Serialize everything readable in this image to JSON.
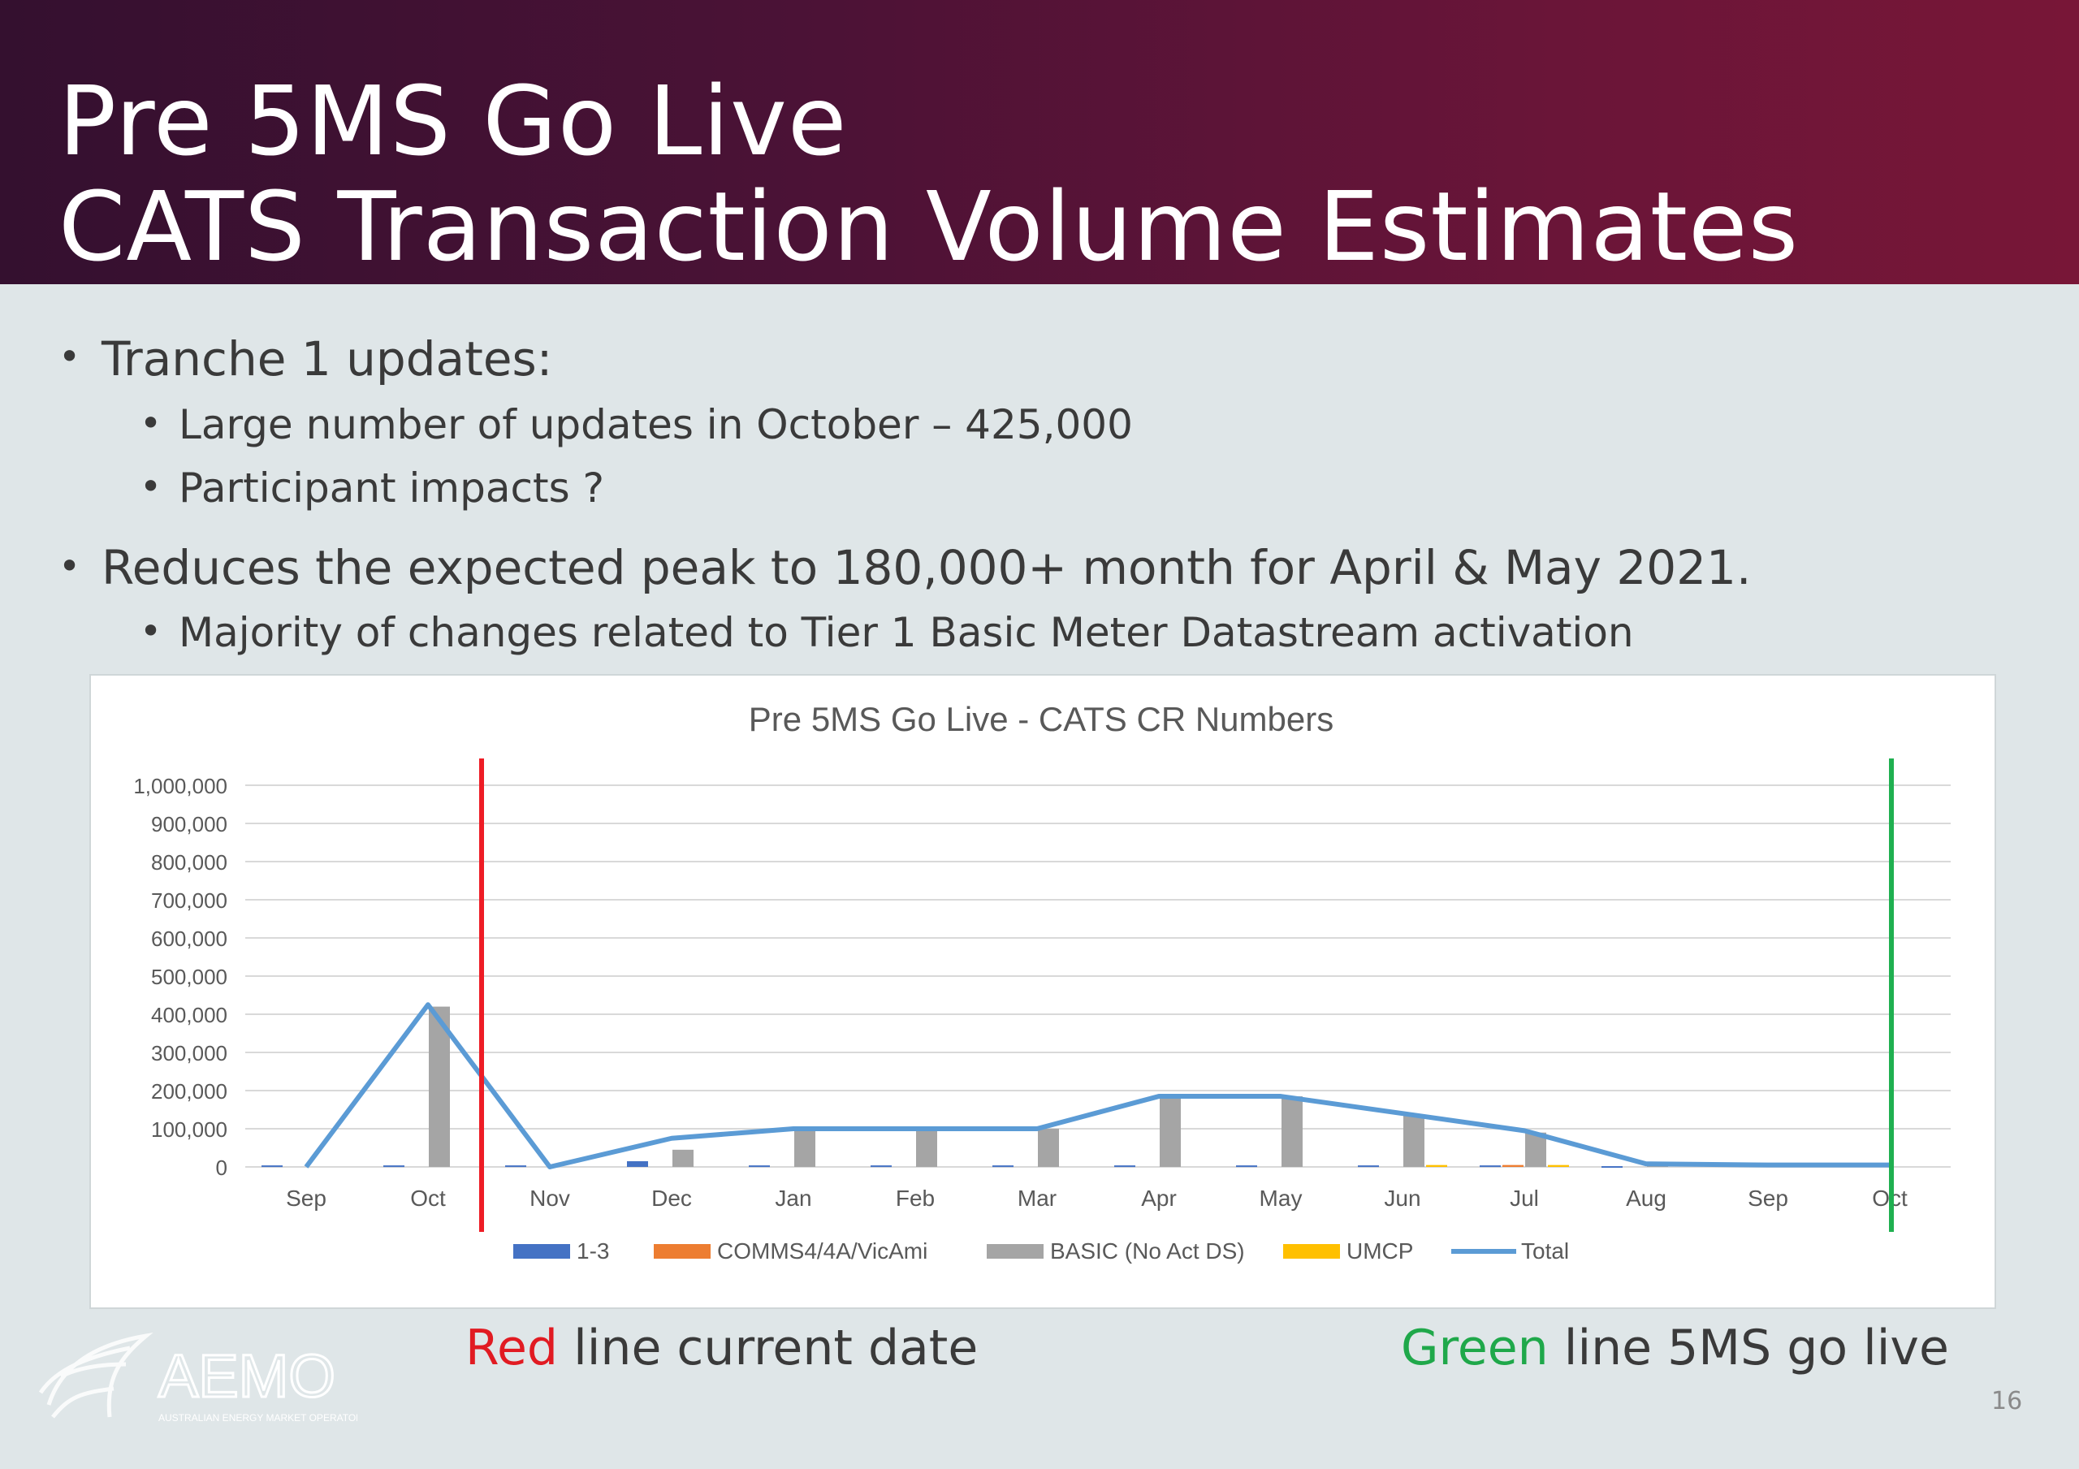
{
  "header": {
    "title_line1": "Pre 5MS Go Live",
    "title_line2": "CATS Transaction Volume Estimates"
  },
  "bullets": {
    "b1": "Tranche 1 updates:",
    "b1_sub1": "Large number of updates in October – 425,000",
    "b1_sub2": "Participant impacts ?",
    "b2": "Reduces the expected peak to 180,000+ month for April & May 2021.",
    "b2_sub1": "Majority of changes related to Tier 1 Basic Meter Datastream activation"
  },
  "captions": {
    "red_word": "Red",
    "red_rest": " line current date",
    "green_word": "Green",
    "green_rest": " line 5MS go live"
  },
  "logo": {
    "text": "AEMO",
    "tagline": "AUSTRALIAN ENERGY MARKET OPERATOR"
  },
  "page_number": "16",
  "colors": {
    "red_text": "#e11b22",
    "green_text": "#1fa84a",
    "red_line": "#ee1c25",
    "green_line": "#1fb050",
    "s13": "#4472c4",
    "comms": "#ed7d31",
    "basic": "#a5a5a5",
    "umcp": "#ffc000",
    "total": "#5b9bd5"
  },
  "chart_data": {
    "type": "bar",
    "title": "Pre 5MS Go Live - CATS CR Numbers",
    "categories": [
      "Sep",
      "Oct",
      "Nov",
      "Dec",
      "Jan",
      "Feb",
      "Mar",
      "Apr",
      "May",
      "Jun",
      "Jul",
      "Aug",
      "Sep",
      "Oct"
    ],
    "ylim": [
      0,
      1000000
    ],
    "yticks": [
      "0",
      "100,000",
      "200,000",
      "300,000",
      "400,000",
      "500,000",
      "600,000",
      "700,000",
      "800,000",
      "900,000",
      "1,000,000"
    ],
    "series": [
      {
        "name": "1-3",
        "type": "bar",
        "values": [
          4000,
          4000,
          4000,
          15000,
          4000,
          4000,
          4000,
          4000,
          4000,
          4000,
          4000,
          2000,
          0,
          0
        ]
      },
      {
        "name": "COMMS4/4A/VicAmi",
        "type": "bar",
        "values": [
          0,
          0,
          0,
          0,
          0,
          0,
          0,
          0,
          0,
          0,
          5000,
          0,
          0,
          0
        ]
      },
      {
        "name": "BASIC (No Act DS)",
        "type": "bar",
        "values": [
          0,
          420000,
          0,
          45000,
          100000,
          100000,
          100000,
          185000,
          185000,
          135000,
          90000,
          5000,
          0,
          0
        ]
      },
      {
        "name": "UMCP",
        "type": "bar",
        "values": [
          0,
          0,
          0,
          0,
          0,
          0,
          0,
          0,
          0,
          5000,
          5000,
          0,
          0,
          0
        ]
      },
      {
        "name": "Total",
        "type": "line",
        "values": [
          0,
          425000,
          0,
          75000,
          100000,
          100000,
          100000,
          185000,
          185000,
          140000,
          95000,
          8000,
          5000,
          5000
        ]
      }
    ],
    "legend_position": "bottom",
    "markers": [
      {
        "label": "current date",
        "color": "red",
        "position": "between Oct and Nov"
      },
      {
        "label": "5MS go live",
        "color": "green",
        "position": "Oct (end)"
      }
    ],
    "grid": true
  }
}
